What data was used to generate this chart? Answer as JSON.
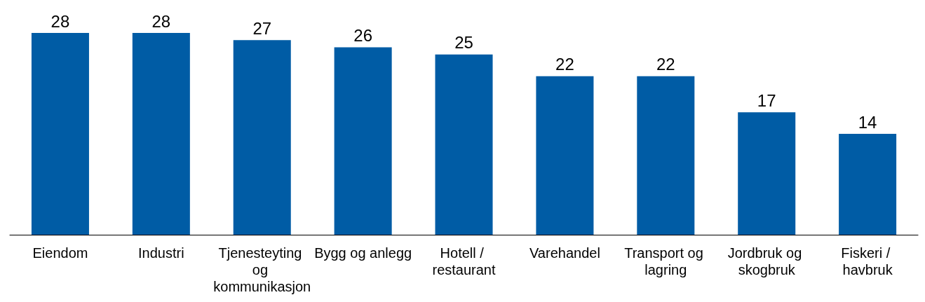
{
  "chart_data": {
    "type": "bar",
    "categories": [
      "Eiendom",
      "Industri",
      "Tjenesteyting og kommunikasjon",
      "Bygg og anlegg",
      "Hotell / restaurant",
      "Varehandel",
      "Transport og lagring",
      "Jordbruk og skogbruk",
      "Fiskeri / havbruk"
    ],
    "values": [
      28,
      28,
      27,
      26,
      25,
      22,
      22,
      17,
      14
    ],
    "color": "#005ca5",
    "data_labels": true,
    "tick_labels": "x"
  }
}
